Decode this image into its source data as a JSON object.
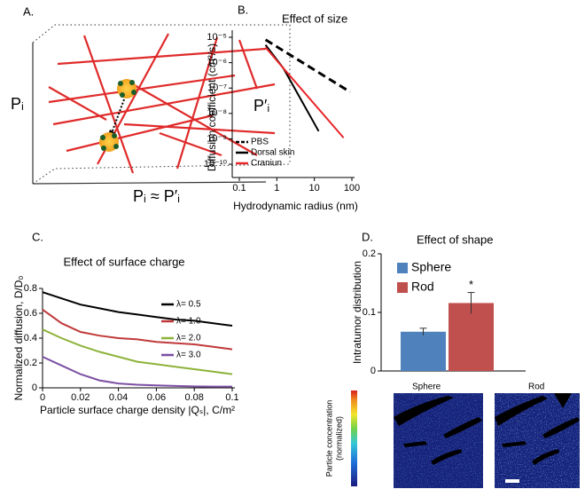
{
  "diagram": {
    "label": "A.",
    "left_label": "Pᵢ",
    "right_label": "P′ᵢ",
    "bottom_label": "Pᵢ ≈ P′ᵢ"
  },
  "chart_data": [
    {
      "type": "line",
      "panel_label": "B.",
      "title": "Effect of size",
      "x_label": "Hydrodynamic radius (nm)",
      "y_label": "Diffusion coefficient (cm²/s)",
      "xscale": "log",
      "yscale": "log",
      "xlim": [
        0.1,
        100
      ],
      "ylim": [
        3e-11,
        1e-05
      ],
      "xticks": [
        0.1,
        1,
        10,
        100
      ],
      "yticks": [
        {
          "value": 1e-05,
          "label": "10⁻⁵"
        },
        {
          "value": 1e-06,
          "label": "10⁻⁶"
        },
        {
          "value": 1e-07,
          "label": "10⁻⁷"
        },
        {
          "value": 1e-08,
          "label": "10⁻⁸"
        },
        {
          "value": 1e-09,
          "label": "10⁻⁹"
        },
        {
          "value": 1e-10,
          "label": "10⁻¹⁰"
        }
      ],
      "legend": "lower left",
      "series": [
        {
          "name": "PBS",
          "color": "#000000",
          "style": "dashed",
          "x": [
            0.5,
            90
          ],
          "values": [
            8e-06,
            7e-08
          ]
        },
        {
          "name": "Dorsal skin",
          "color": "#000000",
          "style": "solid",
          "x": [
            0.5,
            1.5,
            13
          ],
          "values": [
            5e-06,
            6e-07,
            2e-09
          ]
        },
        {
          "name": "Craniun",
          "color": "#e8262a",
          "style": "solid",
          "x": [
            0.5,
            1.5,
            60
          ],
          "values": [
            4e-06,
            6e-07,
            1.1e-09
          ]
        }
      ]
    },
    {
      "type": "line",
      "panel_label": "C.",
      "title": "Effect of surface charge",
      "x_label": "Particle surface charge density |Qₛ|, C/m²",
      "y_label": "Normalized diffusion, D/D₀",
      "xscale": "linear",
      "yscale": "linear",
      "xlim": [
        0,
        0.1
      ],
      "ylim": [
        0,
        0.8
      ],
      "xticks": [
        0,
        0.02,
        0.04,
        0.06,
        0.08,
        0.1
      ],
      "yticks": [
        0,
        0.2,
        0.4,
        0.6,
        0.8
      ],
      "legend": "upper right",
      "series": [
        {
          "name": "λ= 0.5",
          "color": "#000000",
          "style": "solid",
          "x": [
            0,
            0.01,
            0.02,
            0.03,
            0.04,
            0.05,
            0.06,
            0.07,
            0.08,
            0.09,
            0.1
          ],
          "values": [
            0.77,
            0.72,
            0.67,
            0.64,
            0.61,
            0.59,
            0.57,
            0.55,
            0.54,
            0.52,
            0.5
          ]
        },
        {
          "name": "λ= 1.0",
          "color": "#c0393b",
          "style": "solid",
          "x": [
            0,
            0.01,
            0.02,
            0.03,
            0.04,
            0.05,
            0.06,
            0.07,
            0.08,
            0.09,
            0.1
          ],
          "values": [
            0.63,
            0.52,
            0.45,
            0.42,
            0.4,
            0.39,
            0.37,
            0.36,
            0.35,
            0.33,
            0.31
          ]
        },
        {
          "name": "λ= 2.0",
          "color": "#8db33a",
          "style": "solid",
          "x": [
            0,
            0.01,
            0.02,
            0.03,
            0.04,
            0.05,
            0.06,
            0.07,
            0.08,
            0.09,
            0.1
          ],
          "values": [
            0.47,
            0.4,
            0.34,
            0.29,
            0.25,
            0.21,
            0.19,
            0.17,
            0.15,
            0.13,
            0.11
          ]
        },
        {
          "name": "λ= 3.0",
          "color": "#7b4fa3",
          "style": "solid",
          "x": [
            0,
            0.01,
            0.02,
            0.03,
            0.04,
            0.05,
            0.06,
            0.07,
            0.08,
            0.09,
            0.1
          ],
          "values": [
            0.25,
            0.18,
            0.11,
            0.06,
            0.035,
            0.025,
            0.02,
            0.015,
            0.012,
            0.01,
            0.01
          ]
        }
      ]
    },
    {
      "type": "bar",
      "panel_label": "D.",
      "title": "Effect of shape",
      "y_label": "Intratumor distribution",
      "ylim": [
        0,
        0.2
      ],
      "yticks": [
        0,
        0.1,
        0.2
      ],
      "legend": "upper left",
      "annotation": "*",
      "series": [
        {
          "name": "Sphere",
          "color": "#4f81bd",
          "values": [
            0.067
          ],
          "errors": [
            0.006
          ]
        },
        {
          "name": "Rod",
          "color": "#c0504d",
          "values": [
            0.116
          ],
          "errors": [
            0.018
          ]
        }
      ]
    }
  ],
  "images": {
    "labels": [
      "Sphere",
      "Rod"
    ],
    "colorbar_label": [
      "Particle concentration",
      "(normalized)"
    ]
  }
}
